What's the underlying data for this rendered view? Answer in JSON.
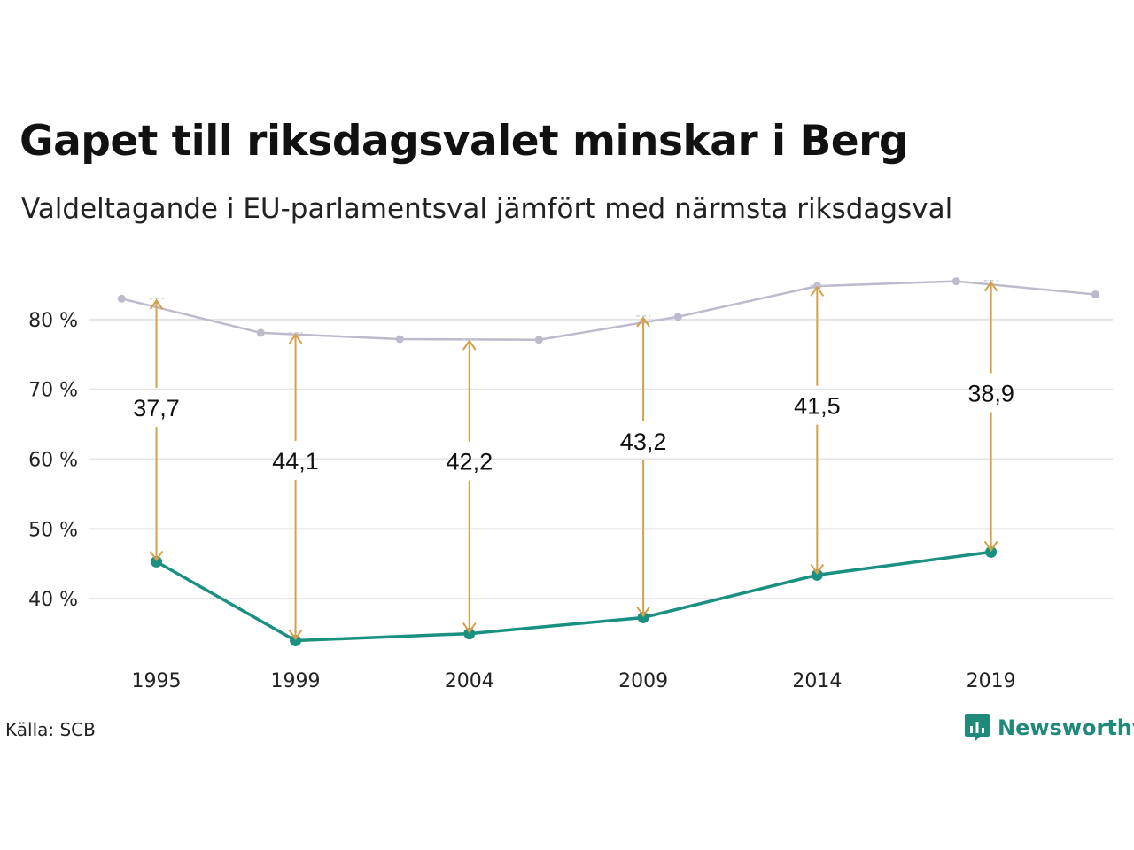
{
  "title": "Gapet till riksdagsvalet minskar i Berg",
  "subtitle": "Valdeltagande i EU-parlamentsval jämfört med närmsta riksdagsval",
  "source": "Källa: SCB",
  "brand": {
    "name": "Newsworthy",
    "icon": "newsworthy-logo-icon"
  },
  "colors": {
    "eu": "#1a9080",
    "riksdag": "#bdbacb",
    "arrow": "#d4a04a",
    "grid": "#e3e3e8"
  },
  "chart_data": {
    "type": "line",
    "xlim": [
      1993.05,
      2022.5
    ],
    "ylim": [
      30,
      89
    ],
    "y_ticks": [
      40,
      50,
      60,
      70,
      80
    ],
    "y_tick_labels": [
      "40 %",
      "50 %",
      "60 %",
      "70 %",
      "80 %"
    ],
    "x_ticks": [
      1995,
      1999,
      2004,
      2009,
      2014,
      2019
    ],
    "x_tick_labels": [
      "1995",
      "1999",
      "2004",
      "2009",
      "2014",
      "2019"
    ],
    "grid": "horizontal",
    "series": [
      {
        "key": "riksdag",
        "x": [
          1994,
          1998,
          2002,
          2006,
          2010,
          2014,
          2018,
          2022
        ],
        "y": [
          83.0,
          78.1,
          77.2,
          77.1,
          80.4,
          84.8,
          85.5,
          83.6
        ]
      },
      {
        "key": "eu",
        "x": [
          1995,
          1999,
          2004,
          2009,
          2014,
          2019
        ],
        "y": [
          45.3,
          34.0,
          35.0,
          37.3,
          43.4,
          46.7
        ]
      }
    ],
    "gaps": [
      {
        "x": 1995,
        "top": 83.0,
        "bottom": 45.3,
        "label": "37,7"
      },
      {
        "x": 1999,
        "top": 78.1,
        "bottom": 34.0,
        "label": "44,1"
      },
      {
        "x": 2004,
        "top": 77.2,
        "bottom": 35.0,
        "label": "42,2"
      },
      {
        "x": 2009,
        "top": 80.5,
        "bottom": 37.3,
        "label": "43,2"
      },
      {
        "x": 2014,
        "top": 84.9,
        "bottom": 43.4,
        "label": "41,5"
      },
      {
        "x": 2019,
        "top": 85.6,
        "bottom": 46.7,
        "label": "38,9"
      }
    ]
  }
}
